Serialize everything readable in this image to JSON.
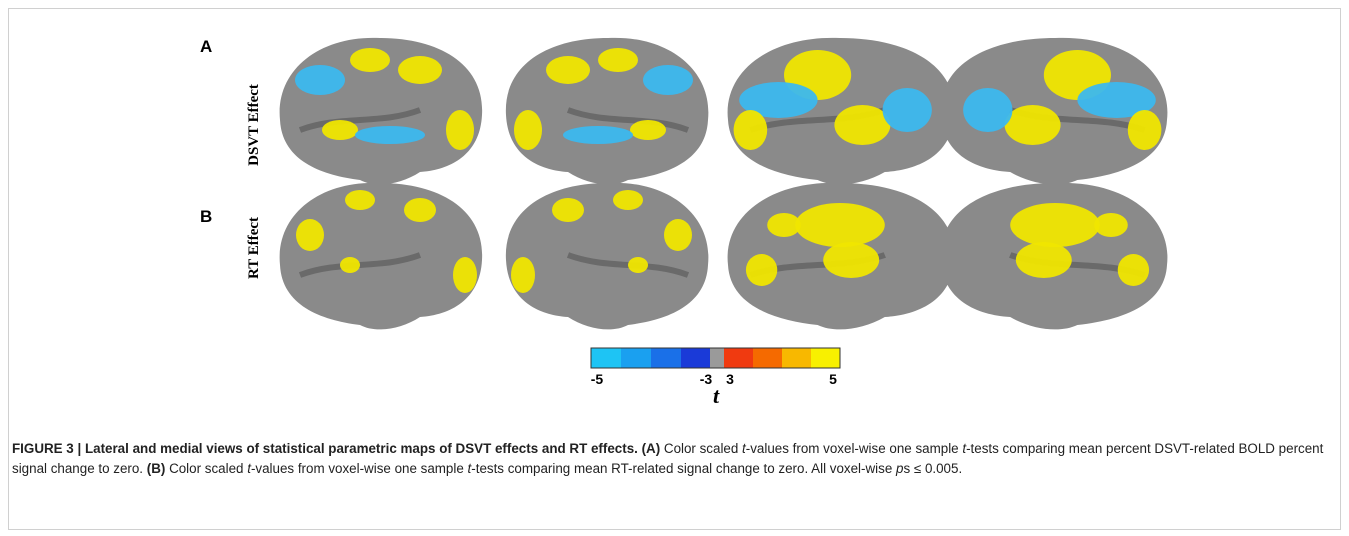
{
  "panels": [
    {
      "label": "A",
      "row_label": "DSVT Effect"
    },
    {
      "label": "B",
      "row_label": "RT Effect"
    }
  ],
  "colorbar": {
    "labels": [
      "-5",
      "-3",
      "3",
      "5"
    ],
    "title": "t"
  },
  "caption": [
    {
      "text": "FIGURE 3 | Lateral and medial views of statistical parametric maps of DSVT effects and RT effects. ",
      "style": "b"
    },
    {
      "text": "(A)",
      "style": "b"
    },
    {
      "text": " Color scaled ",
      "style": "n"
    },
    {
      "text": "t",
      "style": "i"
    },
    {
      "text": "-values from voxel-wise one sample ",
      "style": "n"
    },
    {
      "text": "t",
      "style": "i"
    },
    {
      "text": "-tests comparing mean percent DSVT-related BOLD percent signal change to zero. ",
      "style": "n"
    },
    {
      "text": "(B)",
      "style": "b"
    },
    {
      "text": " Color scaled ",
      "style": "n"
    },
    {
      "text": "t",
      "style": "i"
    },
    {
      "text": "-values from voxel-wise one sample ",
      "style": "n"
    },
    {
      "text": "t",
      "style": "i"
    },
    {
      "text": "-tests comparing mean RT-related signal change to zero. All voxel-wise ",
      "style": "n"
    },
    {
      "text": "p",
      "style": "i"
    },
    {
      "text": "s ≤ 0.005.",
      "style": "n"
    }
  ]
}
